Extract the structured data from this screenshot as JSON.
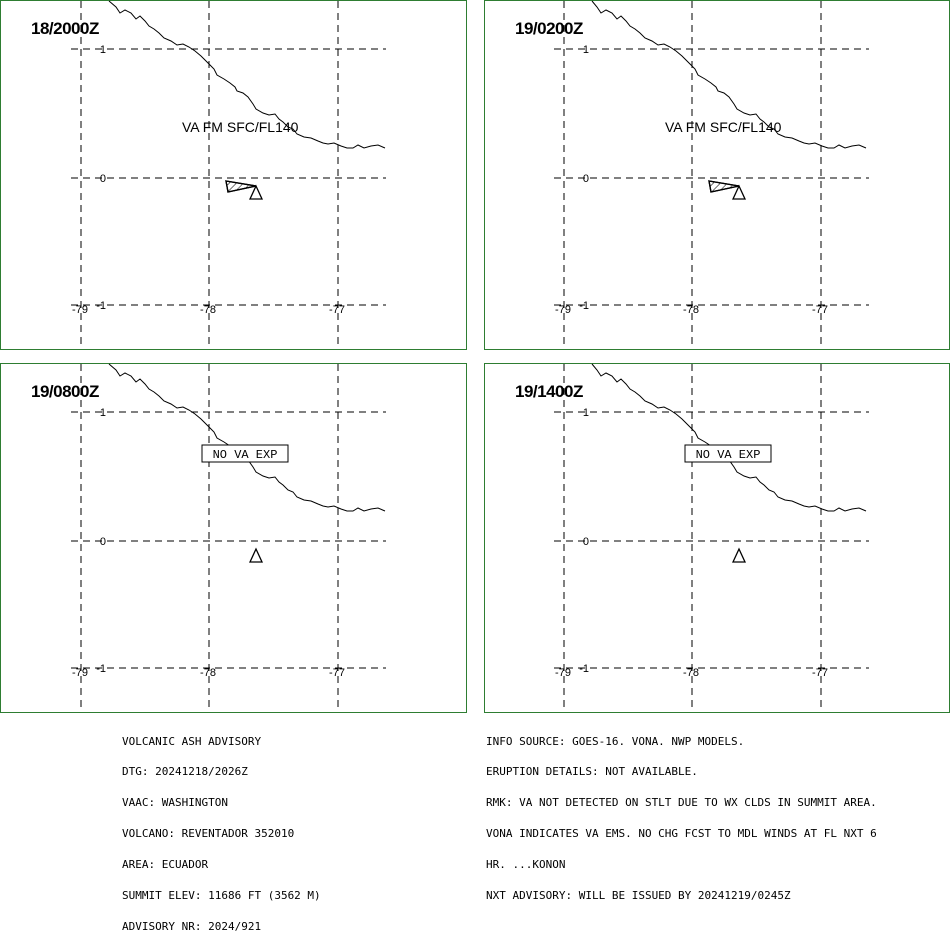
{
  "panels": [
    {
      "time": "18/2000Z",
      "label": "VA FM SFC/FL140",
      "type": "ash"
    },
    {
      "time": "19/0200Z",
      "label": "VA FM SFC/FL140",
      "type": "ash"
    },
    {
      "time": "19/0800Z",
      "label": "NO VA EXP",
      "type": "none"
    },
    {
      "time": "19/1400Z",
      "label": "NO VA EXP",
      "type": "none"
    }
  ],
  "axis": {
    "lat_labels": [
      "1",
      "0",
      "-1"
    ],
    "lon_labels": [
      "-79",
      "-78",
      "-77"
    ]
  },
  "advisory_left": [
    "VOLCANIC ASH ADVISORY",
    "DTG: 20241218/2026Z",
    "VAAC: WASHINGTON",
    "VOLCANO: REVENTADOR 352010",
    "AREA: ECUADOR",
    "SUMMIT ELEV: 11686 FT (3562 M)",
    "ADVISORY NR: 2024/921"
  ],
  "advisory_right": [
    "INFO SOURCE: GOES-16. VONA. NWP MODELS.",
    "ERUPTION DETAILS: NOT AVAILABLE.",
    "RMK: VA NOT DETECTED ON STLT DUE TO WX CLDS IN SUMMIT AREA.",
    "VONA INDICATES VA EMS. NO CHG FCST TO MDL WINDS AT FL NXT 6",
    "HR. ...KONON",
    "NXT ADVISORY: WILL BE ISSUED BY 20241219/0245Z"
  ],
  "colors": {
    "frame": "#2e7d32",
    "grid": "#000000"
  },
  "icons": {
    "volcano": "volcano-triangle-icon"
  }
}
